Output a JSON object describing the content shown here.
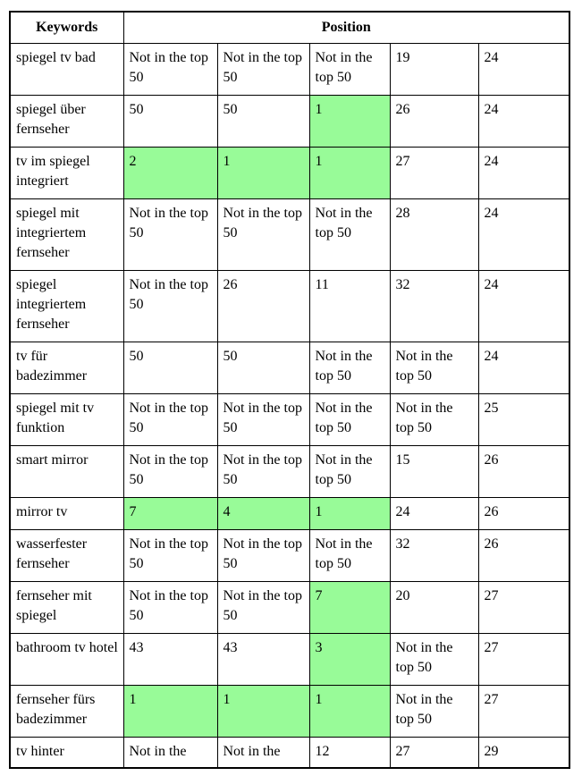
{
  "table": {
    "header": {
      "keywords_label": "Keywords",
      "position_label": "Position"
    },
    "highlight_color": "#98FB98",
    "border_color": "#000000",
    "not_ranked_text": "Not in the top 50",
    "rows": [
      {
        "keyword": "spiegel tv bad",
        "cells": [
          {
            "text": "Not in the top 50",
            "highlight": false
          },
          {
            "text": "Not in the top 50",
            "highlight": false
          },
          {
            "text": "Not in the top 50",
            "highlight": false
          },
          {
            "text": "19",
            "highlight": false
          },
          {
            "text": "24",
            "highlight": false
          }
        ]
      },
      {
        "keyword": "spiegel über fernseher",
        "cells": [
          {
            "text": "50",
            "highlight": false
          },
          {
            "text": "50",
            "highlight": false
          },
          {
            "text": "1",
            "highlight": true
          },
          {
            "text": "26",
            "highlight": false
          },
          {
            "text": "24",
            "highlight": false
          }
        ]
      },
      {
        "keyword": "tv im spiegel integriert",
        "cells": [
          {
            "text": "2",
            "highlight": true
          },
          {
            "text": "1",
            "highlight": true
          },
          {
            "text": "1",
            "highlight": true
          },
          {
            "text": "27",
            "highlight": false
          },
          {
            "text": "24",
            "highlight": false
          }
        ]
      },
      {
        "keyword": "spiegel mit integriertem fernseher",
        "cells": [
          {
            "text": "Not in the top 50",
            "highlight": false
          },
          {
            "text": "Not in the top 50",
            "highlight": false
          },
          {
            "text": "Not in the top 50",
            "highlight": false
          },
          {
            "text": "28",
            "highlight": false
          },
          {
            "text": "24",
            "highlight": false
          }
        ]
      },
      {
        "keyword": "spiegel integriertem fernseher",
        "cells": [
          {
            "text": "Not in the top 50",
            "highlight": false
          },
          {
            "text": "26",
            "highlight": false
          },
          {
            "text": "11",
            "highlight": false
          },
          {
            "text": "32",
            "highlight": false
          },
          {
            "text": "24",
            "highlight": false
          }
        ]
      },
      {
        "keyword": "tv für badezimmer",
        "cells": [
          {
            "text": "50",
            "highlight": false
          },
          {
            "text": "50",
            "highlight": false
          },
          {
            "text": "Not in the top 50",
            "highlight": false
          },
          {
            "text": "Not in the top 50",
            "highlight": false
          },
          {
            "text": "24",
            "highlight": false
          }
        ]
      },
      {
        "keyword": "spiegel mit tv funktion",
        "cells": [
          {
            "text": "Not in the top 50",
            "highlight": false
          },
          {
            "text": "Not in the top 50",
            "highlight": false
          },
          {
            "text": "Not in the top 50",
            "highlight": false
          },
          {
            "text": "Not in the top 50",
            "highlight": false
          },
          {
            "text": "25",
            "highlight": false
          }
        ]
      },
      {
        "keyword": "smart mirror",
        "cells": [
          {
            "text": "Not in the top 50",
            "highlight": false
          },
          {
            "text": "Not in the top 50",
            "highlight": false
          },
          {
            "text": "Not in the top 50",
            "highlight": false
          },
          {
            "text": "15",
            "highlight": false
          },
          {
            "text": "26",
            "highlight": false
          }
        ]
      },
      {
        "keyword": "mirror tv",
        "cells": [
          {
            "text": "7",
            "highlight": true
          },
          {
            "text": "4",
            "highlight": true
          },
          {
            "text": "1",
            "highlight": true
          },
          {
            "text": "24",
            "highlight": false
          },
          {
            "text": "26",
            "highlight": false
          }
        ]
      },
      {
        "keyword": "wasserfester fernseher",
        "cells": [
          {
            "text": "Not in the top 50",
            "highlight": false
          },
          {
            "text": "Not in the top 50",
            "highlight": false
          },
          {
            "text": "Not in the top 50",
            "highlight": false
          },
          {
            "text": "32",
            "highlight": false
          },
          {
            "text": "26",
            "highlight": false
          }
        ]
      },
      {
        "keyword": "fernseher mit spiegel",
        "cells": [
          {
            "text": "Not in the top 50",
            "highlight": false
          },
          {
            "text": "Not in the top 50",
            "highlight": false
          },
          {
            "text": "7",
            "highlight": true
          },
          {
            "text": "20",
            "highlight": false
          },
          {
            "text": "27",
            "highlight": false
          }
        ]
      },
      {
        "keyword": "bathroom tv hotel",
        "cells": [
          {
            "text": "43",
            "highlight": false
          },
          {
            "text": "43",
            "highlight": false
          },
          {
            "text": "3",
            "highlight": true
          },
          {
            "text": "Not in the top 50",
            "highlight": false
          },
          {
            "text": "27",
            "highlight": false
          }
        ]
      },
      {
        "keyword": "fernseher fürs badezimmer",
        "cells": [
          {
            "text": "1",
            "highlight": true
          },
          {
            "text": "1",
            "highlight": true
          },
          {
            "text": "1",
            "highlight": true
          },
          {
            "text": "Not in the top 50",
            "highlight": false
          },
          {
            "text": "27",
            "highlight": false
          }
        ]
      },
      {
        "keyword": "tv hinter",
        "cut_off": true,
        "cells": [
          {
            "text": "Not in the",
            "highlight": false
          },
          {
            "text": "Not in the",
            "highlight": false
          },
          {
            "text": "12",
            "highlight": false
          },
          {
            "text": "27",
            "highlight": false
          },
          {
            "text": "29",
            "highlight": false
          }
        ]
      }
    ]
  }
}
